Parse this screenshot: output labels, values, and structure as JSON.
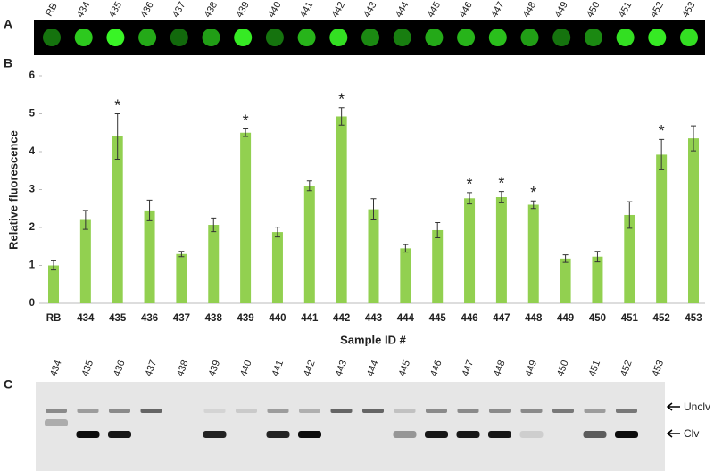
{
  "panels": [
    "A",
    "B",
    "C"
  ],
  "chart_data": {
    "type": "bar",
    "categories": [
      "RB",
      "434",
      "435",
      "436",
      "437",
      "438",
      "439",
      "440",
      "441",
      "442",
      "443",
      "444",
      "445",
      "446",
      "447",
      "448",
      "449",
      "450",
      "451",
      "452",
      "453"
    ],
    "values": [
      1.0,
      2.2,
      4.4,
      2.45,
      1.3,
      2.07,
      4.5,
      1.88,
      3.1,
      4.93,
      2.48,
      1.45,
      1.93,
      2.77,
      2.8,
      2.6,
      1.18,
      1.23,
      2.33,
      3.92,
      4.35
    ],
    "errors": [
      0.12,
      0.25,
      0.6,
      0.27,
      0.07,
      0.18,
      0.1,
      0.13,
      0.13,
      0.23,
      0.28,
      0.1,
      0.2,
      0.15,
      0.15,
      0.1,
      0.1,
      0.14,
      0.35,
      0.4,
      0.33
    ],
    "markers": [
      null,
      null,
      "*",
      null,
      null,
      null,
      "*",
      null,
      null,
      "*",
      null,
      null,
      null,
      "*",
      "*",
      "*",
      null,
      null,
      null,
      "*",
      null
    ],
    "color": "#92d050",
    "ylim": [
      0,
      6
    ],
    "yticks": [
      0,
      1,
      2,
      3,
      4,
      5,
      6
    ],
    "x_label": "Sample ID #",
    "y_label": "Relative fluorescence",
    "grid": false
  },
  "gel": {
    "lanes": [
      "434",
      "435",
      "436",
      "437",
      "438",
      "439",
      "440",
      "441",
      "442",
      "443",
      "444",
      "445",
      "446",
      "447",
      "448",
      "449",
      "450",
      "451",
      "452",
      "453"
    ],
    "bands": [
      "Unclv",
      "Clv"
    ]
  }
}
